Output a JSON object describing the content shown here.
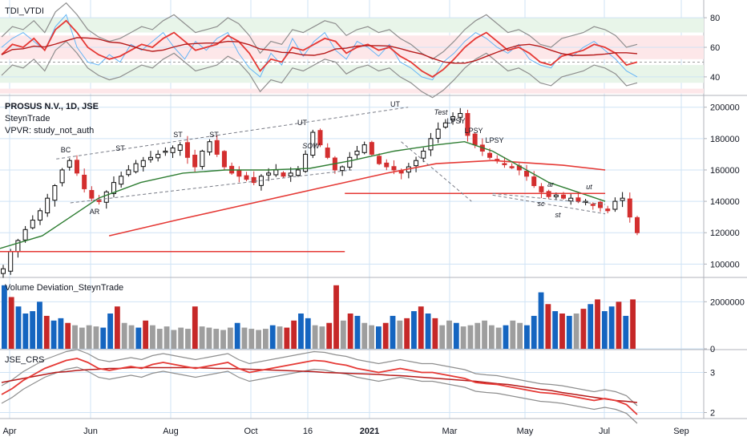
{
  "colors": {
    "up": "#0b0b0b",
    "down": "#d32f2f",
    "grid": "#cfe3f5",
    "ma_long": "#e53935",
    "ma_short": "#2e7d32",
    "support": "#e53935",
    "trend_dash": "#787b86",
    "band": "#8e8e8e",
    "tdi_rsi": "#e53935",
    "tdi_fast": "#64b5f6",
    "vol_up": "#1565c0",
    "vol_down": "#c62828",
    "vol_neutral": "#9e9e9e",
    "zone_green": "#e8f5e9",
    "zone_red": "#fde7e9"
  },
  "x_axis": {
    "labels": [
      "Apr",
      "Jun",
      "Aug",
      "Oct",
      "16",
      "2021",
      "Mar",
      "May",
      "Jul",
      "Sep"
    ]
  },
  "panes": {
    "tdi": {
      "title": "TDI_VTDI",
      "ticks": [
        "80",
        "60",
        "40"
      ]
    },
    "price": {
      "title": "PROSUS N.V., 1D, JSE",
      "subtitle": "SteynTrade",
      "vpvr": "VPVR: study_not_auth",
      "ticks": [
        "200000",
        "180000",
        "160000",
        "140000",
        "120000",
        "100000"
      ]
    },
    "volume": {
      "title": "Volume Deviation_SteynTrade",
      "ticks": [
        "2000000",
        "0"
      ]
    },
    "crs": {
      "title": "JSE_CRS",
      "ticks": [
        "3",
        "2"
      ]
    }
  },
  "annotations": [
    "BC",
    "AR",
    "ST",
    "ST",
    "ST",
    "UT",
    "SOW",
    "UT",
    "Test",
    "LPSY",
    "LPSY",
    "LPSY",
    "sc",
    "ar",
    "st",
    "ut"
  ],
  "chart_data": [
    {
      "type": "line",
      "name": "TDI_VTDI",
      "ylim": [
        28,
        92
      ],
      "zones": [
        [
          70,
          80
        ],
        [
          52,
          68
        ],
        [
          36,
          48
        ]
      ],
      "series": [
        {
          "values": [
            55,
            62,
            60,
            66,
            58,
            72,
            78,
            70,
            60,
            55,
            52,
            54,
            58,
            62,
            60,
            66,
            70,
            64,
            58,
            60,
            62,
            68,
            64,
            56,
            44,
            52,
            50,
            60,
            58,
            62,
            66,
            64,
            56,
            60,
            62,
            58,
            60,
            54,
            50,
            44,
            40,
            45,
            52,
            60,
            66,
            70,
            64,
            58,
            60,
            56,
            50,
            48,
            54,
            56,
            58,
            62,
            60,
            56,
            48,
            50
          ]
        },
        {
          "values": [
            60,
            66,
            70,
            64,
            58,
            74,
            82,
            60,
            50,
            48,
            55,
            50,
            62,
            58,
            64,
            70,
            60,
            52,
            64,
            58,
            66,
            70,
            56,
            46,
            40,
            56,
            48,
            66,
            54,
            64,
            70,
            58,
            52,
            64,
            60,
            54,
            62,
            50,
            46,
            40,
            38,
            50,
            56,
            64,
            70,
            66,
            60,
            56,
            62,
            52,
            48,
            46,
            56,
            54,
            60,
            64,
            58,
            52,
            44,
            40
          ]
        }
      ]
    },
    {
      "type": "candlestick",
      "name": "PROSUS N.V., 1D, JSE",
      "ylim": [
        92000,
        207000
      ],
      "x_range": [
        "2020-03",
        "2021-09"
      ],
      "close_path": [
        97000,
        108000,
        115000,
        122000,
        128000,
        134000,
        142000,
        150000,
        160000,
        166000,
        158000,
        148000,
        142000,
        140000,
        146000,
        152000,
        156000,
        160000,
        164000,
        166000,
        168000,
        170000,
        172000,
        174000,
        176000,
        168000,
        162000,
        172000,
        178000,
        170000,
        162000,
        158000,
        156000,
        154000,
        152000,
        156000,
        158000,
        160000,
        156000,
        158000,
        160000,
        170000,
        184000,
        176000,
        168000,
        160000,
        162000,
        168000,
        172000,
        176000,
        170000,
        164000,
        162000,
        160000,
        158000,
        162000,
        166000,
        172000,
        180000,
        186000,
        190000,
        194000,
        196000,
        182000,
        176000,
        172000,
        168000,
        166000,
        164000,
        162000,
        160000,
        156000,
        150000,
        146000,
        143000,
        144000,
        142000,
        142000,
        140000,
        140000,
        138000,
        136000,
        134000,
        140000,
        142000,
        130000,
        120000
      ],
      "ma_long": [
        [
          0.155,
          118000
        ],
        [
          0.25,
          128000
        ],
        [
          0.35,
          138000
        ],
        [
          0.45,
          148000
        ],
        [
          0.55,
          158000
        ],
        [
          0.62,
          164000
        ],
        [
          0.7,
          166000
        ],
        [
          0.8,
          163000
        ],
        [
          0.86,
          160000
        ]
      ],
      "ma_short": [
        [
          0.0,
          110000
        ],
        [
          0.06,
          118000
        ],
        [
          0.1,
          130000
        ],
        [
          0.14,
          142000
        ],
        [
          0.2,
          152000
        ],
        [
          0.26,
          158000
        ],
        [
          0.32,
          160000
        ],
        [
          0.38,
          160000
        ],
        [
          0.44,
          161000
        ],
        [
          0.5,
          166000
        ],
        [
          0.56,
          172000
        ],
        [
          0.62,
          176000
        ],
        [
          0.66,
          178000
        ],
        [
          0.7,
          172000
        ],
        [
          0.74,
          162000
        ],
        [
          0.78,
          152000
        ],
        [
          0.82,
          146000
        ],
        [
          0.86,
          140000
        ]
      ],
      "levels": [
        {
          "value": 108000,
          "from": 0.0,
          "to": 0.49
        },
        {
          "value": 145000,
          "from": 0.49,
          "to": 0.86
        }
      ],
      "trendlines": [
        [
          [
            0.08,
            167000
          ],
          [
            0.58,
            200000
          ]
        ],
        [
          [
            0.1,
            139000
          ],
          [
            0.5,
            160000
          ]
        ],
        [
          [
            0.57,
            178000
          ],
          [
            0.67,
            140000
          ]
        ],
        [
          [
            0.7,
            144000
          ],
          [
            0.86,
            132000
          ]
        ],
        [
          [
            0.7,
            145000
          ],
          [
            0.86,
            138000
          ]
        ]
      ]
    },
    {
      "type": "bar",
      "name": "Volume Deviation_SteynTrade",
      "ylim": [
        0,
        3000000
      ],
      "values": [
        2700000,
        2200000,
        1800000,
        1500000,
        1600000,
        2000000,
        1400000,
        1200000,
        1300000,
        1100000,
        1000000,
        900000,
        1000000,
        950000,
        900000,
        1500000,
        1800000,
        1100000,
        1000000,
        900000,
        1200000,
        1000000,
        850000,
        950000,
        800000,
        900000,
        850000,
        1800000,
        950000,
        900000,
        850000,
        800000,
        900000,
        1100000,
        900000,
        850000,
        800000,
        850000,
        1000000,
        950000,
        900000,
        1200000,
        1500000,
        1300000,
        1000000,
        950000,
        1100000,
        2700000,
        1200000,
        1500000,
        1400000,
        1100000,
        1000000,
        950000,
        1100000,
        1400000,
        1200000,
        1300000,
        1600000,
        1800000,
        1500000,
        1300000,
        1000000,
        1200000,
        1100000,
        950000,
        1000000,
        1100000,
        1200000,
        1000000,
        900000,
        1000000,
        1200000,
        1100000,
        1000000,
        1400000,
        2400000,
        1900000,
        1600000,
        1500000,
        1400000,
        1500000,
        1700000,
        1900000,
        2100000,
        1600000,
        1800000,
        2000000,
        1400000,
        2100000
      ],
      "signs": [
        1,
        -1,
        1,
        1,
        1,
        1,
        -1,
        1,
        1,
        -1,
        0,
        0,
        0,
        0,
        1,
        1,
        -1,
        0,
        0,
        1,
        -1,
        0,
        0,
        0,
        0,
        0,
        0,
        -1,
        0,
        0,
        0,
        0,
        0,
        1,
        0,
        0,
        0,
        0,
        1,
        0,
        -1,
        -1,
        1,
        1,
        0,
        0,
        -1,
        -1,
        0,
        -1,
        1,
        0,
        0,
        1,
        -1,
        1,
        0,
        -1,
        1,
        -1,
        1,
        -1,
        0,
        0,
        1,
        0,
        0,
        0,
        0,
        0,
        0,
        1,
        0,
        0,
        1,
        1,
        1,
        -1,
        1,
        -1,
        1,
        0,
        -1,
        1,
        -1,
        1,
        1,
        -1,
        1,
        -1
      ]
    },
    {
      "type": "line",
      "name": "JSE_CRS",
      "ylim": [
        1.85,
        3.55
      ],
      "series": [
        {
          "values": [
            2.45,
            2.6,
            2.8,
            2.95,
            3.1,
            3.2,
            3.3,
            3.35,
            3.25,
            3.1,
            3.05,
            3.1,
            3.15,
            3.1,
            3.2,
            3.25,
            3.2,
            3.15,
            3.1,
            3.15,
            3.2,
            3.25,
            3.1,
            3.0,
            3.05,
            3.1,
            3.15,
            3.2,
            3.25,
            3.3,
            3.28,
            3.22,
            3.18,
            3.1,
            3.05,
            3.0,
            3.05,
            3.1,
            3.05,
            3.0,
            3.0,
            2.95,
            2.9,
            2.85,
            2.75,
            2.72,
            2.7,
            2.65,
            2.6,
            2.55,
            2.5,
            2.48,
            2.45,
            2.4,
            2.35,
            2.3,
            2.35,
            2.3,
            2.2,
            1.95
          ]
        },
        {
          "values": [
            2.75,
            2.8,
            2.85,
            2.9,
            2.95,
            3.0,
            3.02,
            3.05,
            3.07,
            3.08,
            3.1,
            3.1,
            3.12,
            3.12,
            3.12,
            3.12,
            3.12,
            3.12,
            3.12,
            3.11,
            3.1,
            3.1,
            3.09,
            3.08,
            3.07,
            3.06,
            3.05,
            3.04,
            3.03,
            3.02,
            3.0,
            2.99,
            2.98,
            2.97,
            2.96,
            2.95,
            2.93,
            2.92,
            2.9,
            2.88,
            2.86,
            2.84,
            2.82,
            2.8,
            2.78,
            2.75,
            2.72,
            2.7,
            2.66,
            2.62,
            2.58,
            2.55,
            2.5,
            2.46,
            2.42,
            2.38,
            2.34,
            2.3,
            2.28,
            2.25
          ]
        }
      ]
    }
  ]
}
